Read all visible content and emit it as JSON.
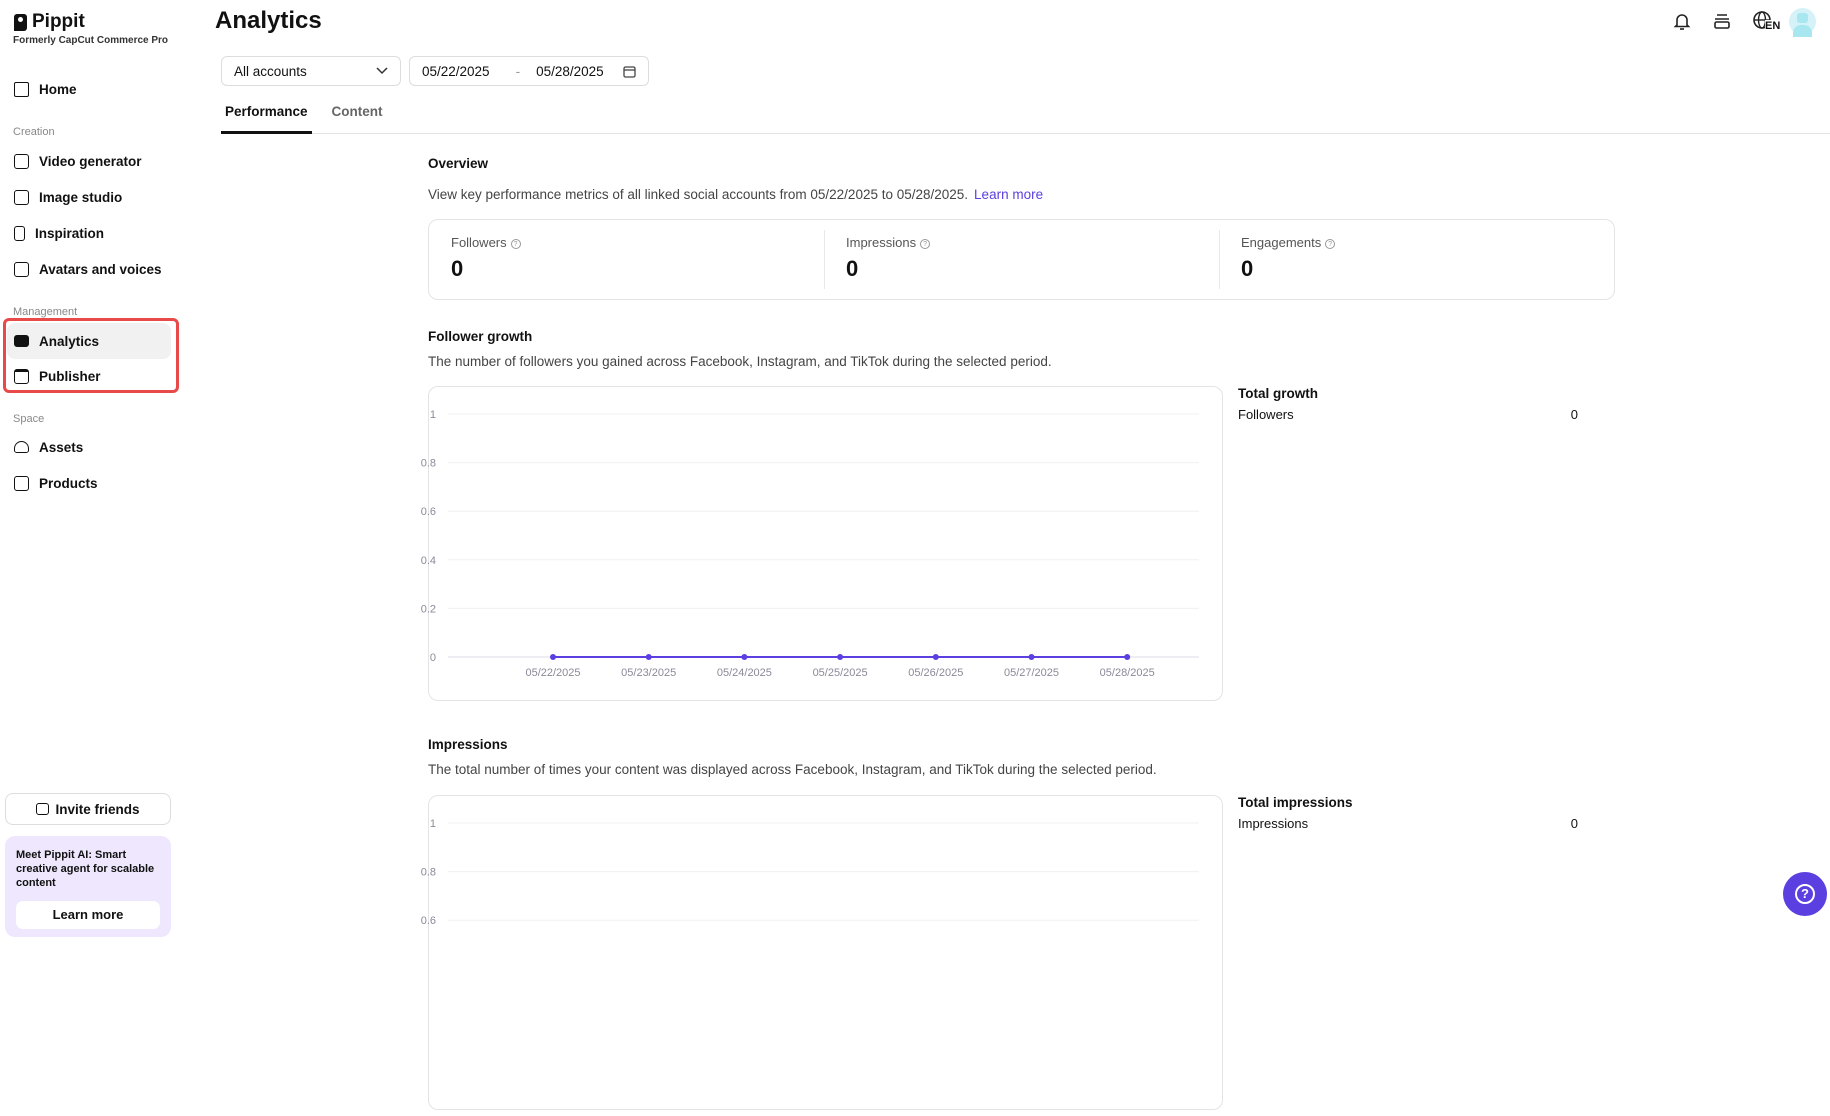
{
  "brand": {
    "name": "Pippit",
    "subtitle": "Formerly CapCut Commerce Pro"
  },
  "sidebar": {
    "home": "Home",
    "sections": {
      "creation": "Creation",
      "management": "Management",
      "space": "Space"
    },
    "items": [
      {
        "label": "Video generator",
        "icon": "video-generator-icon"
      },
      {
        "label": "Image studio",
        "icon": "image-studio-icon"
      },
      {
        "label": "Inspiration",
        "icon": "inspiration-icon"
      },
      {
        "label": "Avatars and voices",
        "icon": "avatar-icon"
      },
      {
        "label": "Analytics",
        "icon": "analytics-icon",
        "active": true
      },
      {
        "label": "Publisher",
        "icon": "calendar-icon"
      },
      {
        "label": "Assets",
        "icon": "cloud-icon"
      },
      {
        "label": "Products",
        "icon": "bag-icon"
      }
    ],
    "invite": "Invite friends",
    "promo": {
      "bold": "Meet Pippit AI:",
      "text": " Smart creative agent for scalable content",
      "button": "Learn more"
    }
  },
  "header": {
    "title": "Analytics",
    "language": "EN"
  },
  "filters": {
    "account": "All accounts",
    "date_from": "05/22/2025",
    "date_sep": "-",
    "date_to": "05/28/2025"
  },
  "tabs": [
    {
      "label": "Performance",
      "active": true
    },
    {
      "label": "Content"
    }
  ],
  "overview": {
    "title": "Overview",
    "desc": "View key performance metrics of all linked social accounts from 05/22/2025 to 05/28/2025.",
    "link": "Learn more",
    "metrics": [
      {
        "label": "Followers",
        "value": "0"
      },
      {
        "label": "Impressions",
        "value": "0"
      },
      {
        "label": "Engagements",
        "value": "0"
      }
    ]
  },
  "follower_growth": {
    "title": "Follower growth",
    "desc": "The number of followers you gained across Facebook, Instagram, and TikTok during the selected period.",
    "total_title": "Total growth",
    "total_label": "Followers",
    "total_value": "0"
  },
  "impressions": {
    "title": "Impressions",
    "desc": "The total number of times your content was displayed across Facebook, Instagram, and TikTok during the selected period.",
    "total_title": "Total impressions",
    "total_label": "Impressions",
    "total_value": "0"
  },
  "chart_data": [
    {
      "type": "line",
      "categories": [
        "05/22/2025",
        "05/23/2025",
        "05/24/2025",
        "05/25/2025",
        "05/26/2025",
        "05/27/2025",
        "05/28/2025"
      ],
      "values": [
        0,
        0,
        0,
        0,
        0,
        0,
        0
      ],
      "ylim": [
        0,
        1
      ],
      "yticks": [
        "0",
        "0.2",
        "0.4",
        "0.6",
        "0.8",
        "1"
      ],
      "grid": true,
      "color": "#5b3fe0"
    },
    {
      "type": "line",
      "ylim": [
        0,
        1
      ],
      "yticks": [
        "0.6",
        "0.8",
        "1"
      ],
      "grid": true,
      "color": "#5b3fe0"
    }
  ],
  "colors": {
    "accent": "#5b3fe0",
    "highlight": "#e84a4a"
  }
}
